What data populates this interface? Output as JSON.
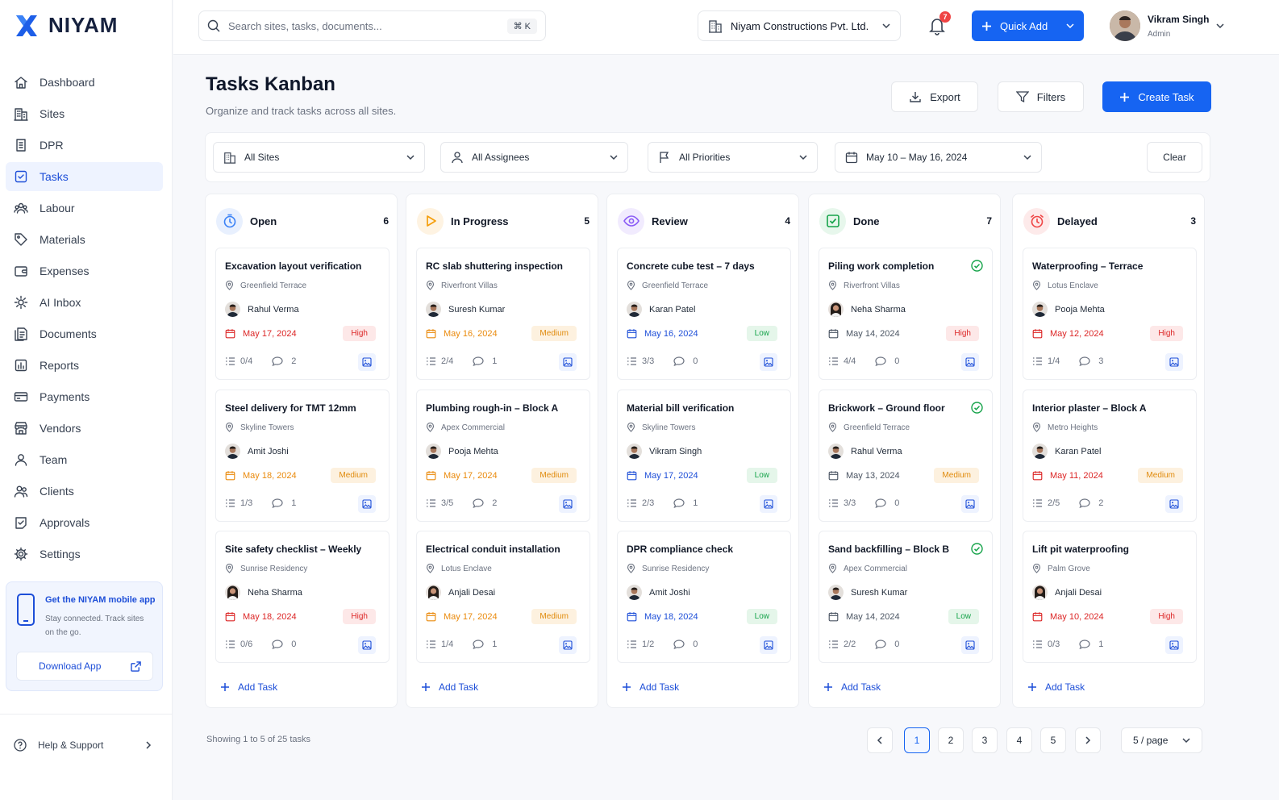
{
  "brand": {
    "name": "NIYAM"
  },
  "sidebar": {
    "items": [
      {
        "label": "Dashboard",
        "icon": "home-icon"
      },
      {
        "label": "Sites",
        "icon": "building-icon"
      },
      {
        "label": "DPR",
        "icon": "report-icon"
      },
      {
        "label": "Tasks",
        "icon": "checkbox-icon"
      },
      {
        "label": "Labour",
        "icon": "people-icon"
      },
      {
        "label": "Materials",
        "icon": "tag-icon"
      },
      {
        "label": "Expenses",
        "icon": "wallet-icon"
      },
      {
        "label": "AI Inbox",
        "icon": "ai-icon"
      },
      {
        "label": "Documents",
        "icon": "documents-icon"
      },
      {
        "label": "Reports",
        "icon": "chart-icon"
      },
      {
        "label": "Payments",
        "icon": "payment-icon"
      },
      {
        "label": "Vendors",
        "icon": "store-icon"
      },
      {
        "label": "Team",
        "icon": "user-icon"
      },
      {
        "label": "Clients",
        "icon": "clients-icon"
      },
      {
        "label": "Approvals",
        "icon": "approval-icon"
      },
      {
        "label": "Settings",
        "icon": "gear-icon"
      }
    ],
    "active": "Tasks",
    "promo": {
      "title": "Get the NIYAM mobile app",
      "text": "Stay connected. Track sites on the go.",
      "button": "Download App"
    },
    "help": "Help & Support"
  },
  "topbar": {
    "search_placeholder": "Search sites, tasks, documents...",
    "shortcut": "⌘ K",
    "org": "Niyam Constructions Pvt. Ltd.",
    "notifications": "7",
    "quick_add": "Quick Add",
    "user_name": "Vikram Singh",
    "user_role": "Admin"
  },
  "page": {
    "title": "Tasks Kanban",
    "subtitle": "Organize and track tasks across all sites.",
    "export": "Export",
    "filters": "Filters",
    "create": "Create Task"
  },
  "filters": {
    "sites": "All Sites",
    "assignees": "All Assignees",
    "priorities": "All Priorities",
    "dates": "May 10 – May 16, 2024",
    "clear": "Clear"
  },
  "colors": {
    "accent": "#1664f2",
    "overdue": "#dc2626",
    "upcoming": "#ea8a0c",
    "ontrack": "#1d4ed8",
    "done": "#4b5563"
  },
  "columns": [
    {
      "title": "Open",
      "count": "6",
      "icon": "clock-icon",
      "icon_color": "#3b82f6",
      "icon_bg": "#e8f0fe",
      "cards": [
        {
          "title": "Excavation layout verification",
          "site": "Greenfield Terrace",
          "assignee": "Rahul Verma",
          "gender": "m",
          "date": "May 17, 2024",
          "date_status": "overdue",
          "priority": "High",
          "checklist": "0/4",
          "comments": "2",
          "done": false
        },
        {
          "title": "Steel delivery for TMT 12mm",
          "site": "Skyline Towers",
          "assignee": "Amit Joshi",
          "gender": "m",
          "date": "May 18, 2024",
          "date_status": "upcoming",
          "priority": "Medium",
          "checklist": "1/3",
          "comments": "1",
          "done": false
        },
        {
          "title": "Site safety checklist – Weekly",
          "site": "Sunrise Residency",
          "assignee": "Neha Sharma",
          "gender": "f",
          "date": "May 18, 2024",
          "date_status": "overdue",
          "priority": "High",
          "checklist": "0/6",
          "comments": "0",
          "done": false
        }
      ],
      "add_label": "Add Task"
    },
    {
      "title": "In Progress",
      "count": "5",
      "icon": "play-icon",
      "icon_color": "#f59e0b",
      "icon_bg": "#fef3e2",
      "cards": [
        {
          "title": "RC slab shuttering inspection",
          "site": "Riverfront Villas",
          "assignee": "Suresh Kumar",
          "gender": "m",
          "date": "May 16, 2024",
          "date_status": "upcoming",
          "priority": "Medium",
          "checklist": "2/4",
          "comments": "1",
          "done": false
        },
        {
          "title": "Plumbing rough-in – Block A",
          "site": "Apex Commercial",
          "assignee": "Pooja Mehta",
          "gender": "m",
          "date": "May 17, 2024",
          "date_status": "upcoming",
          "priority": "Medium",
          "checklist": "3/5",
          "comments": "2",
          "done": false
        },
        {
          "title": "Electrical conduit installation",
          "site": "Lotus Enclave",
          "assignee": "Anjali Desai",
          "gender": "f",
          "date": "May 17, 2024",
          "date_status": "upcoming",
          "priority": "Medium",
          "checklist": "1/4",
          "comments": "1",
          "done": false
        }
      ],
      "add_label": "Add Task"
    },
    {
      "title": "Review",
      "count": "4",
      "icon": "eye-icon",
      "icon_color": "#8b5cf6",
      "icon_bg": "#f1ebfe",
      "cards": [
        {
          "title": "Concrete cube test – 7 days",
          "site": "Greenfield Terrace",
          "assignee": "Karan Patel",
          "gender": "m",
          "date": "May 16, 2024",
          "date_status": "ontrack",
          "priority": "Low",
          "checklist": "3/3",
          "comments": "0",
          "done": false
        },
        {
          "title": "Material bill verification",
          "site": "Skyline Towers",
          "assignee": "Vikram Singh",
          "gender": "m",
          "date": "May 17, 2024",
          "date_status": "ontrack",
          "priority": "Low",
          "checklist": "2/3",
          "comments": "1",
          "done": false
        },
        {
          "title": "DPR compliance check",
          "site": "Sunrise Residency",
          "assignee": "Amit Joshi",
          "gender": "m",
          "date": "May 18, 2024",
          "date_status": "ontrack",
          "priority": "Low",
          "checklist": "1/2",
          "comments": "0",
          "done": false
        }
      ],
      "add_label": "Add Task"
    },
    {
      "title": "Done",
      "count": "7",
      "icon": "check-square-icon",
      "icon_color": "#16a34a",
      "icon_bg": "#e7f7ec",
      "cards": [
        {
          "title": "Piling work completion",
          "site": "Riverfront Villas",
          "assignee": "Neha Sharma",
          "gender": "f",
          "date": "May 14, 2024",
          "date_status": "done",
          "priority": "High",
          "checklist": "4/4",
          "comments": "0",
          "done": true
        },
        {
          "title": "Brickwork – Ground floor",
          "site": "Greenfield Terrace",
          "assignee": "Rahul Verma",
          "gender": "m",
          "date": "May 13, 2024",
          "date_status": "done",
          "priority": "Medium",
          "checklist": "3/3",
          "comments": "0",
          "done": true
        },
        {
          "title": "Sand backfilling – Block B",
          "site": "Apex Commercial",
          "assignee": "Suresh Kumar",
          "gender": "m",
          "date": "May 14, 2024",
          "date_status": "done",
          "priority": "Low",
          "checklist": "2/2",
          "comments": "0",
          "done": true
        }
      ],
      "add_label": "Add Task"
    },
    {
      "title": "Delayed",
      "count": "3",
      "icon": "alarm-icon",
      "icon_color": "#ef4444",
      "icon_bg": "#fdeaea",
      "cards": [
        {
          "title": "Waterproofing – Terrace",
          "site": "Lotus Enclave",
          "assignee": "Pooja Mehta",
          "gender": "m",
          "date": "May 12, 2024",
          "date_status": "overdue",
          "priority": "High",
          "checklist": "1/4",
          "comments": "3",
          "done": false
        },
        {
          "title": "Interior plaster – Block A",
          "site": "Metro Heights",
          "assignee": "Karan Patel",
          "gender": "m",
          "date": "May 11, 2024",
          "date_status": "overdue",
          "priority": "Medium",
          "checklist": "2/5",
          "comments": "2",
          "done": false
        },
        {
          "title": "Lift pit waterproofing",
          "site": "Palm Grove",
          "assignee": "Anjali Desai",
          "gender": "f",
          "date": "May 10, 2024",
          "date_status": "overdue",
          "priority": "High",
          "checklist": "0/3",
          "comments": "1",
          "done": false
        }
      ],
      "add_label": "Add Task"
    }
  ],
  "footer": {
    "showing": "Showing 1 to 5 of 25 tasks",
    "pages": [
      "1",
      "2",
      "3",
      "4",
      "5"
    ],
    "current_page": "1",
    "per_page": "5 / page"
  }
}
